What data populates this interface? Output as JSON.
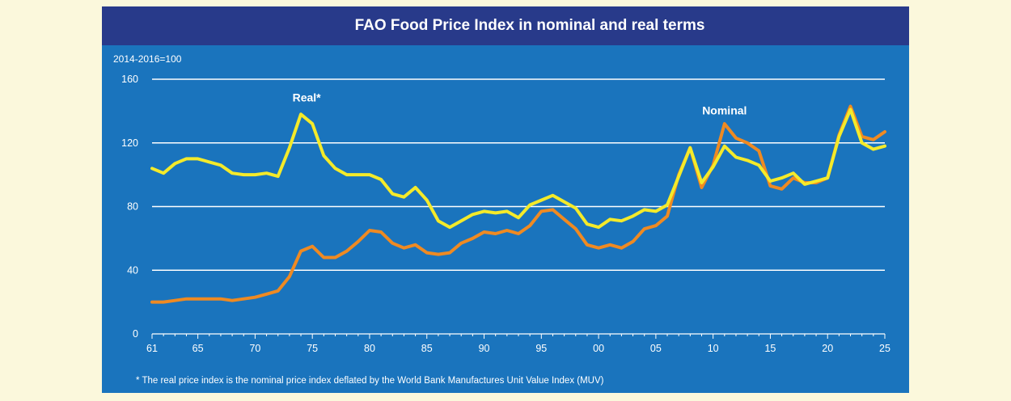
{
  "chart_data": {
    "type": "line",
    "title": "FAO Food Price Index in nominal and real terms",
    "ylabel": "2014-2016=100",
    "xlabel": "",
    "xlim": [
      1961,
      2025
    ],
    "ylim": [
      0,
      160
    ],
    "yticks": [
      0,
      40,
      80,
      120,
      160
    ],
    "xtick_labels": [
      "61",
      "65",
      "70",
      "75",
      "80",
      "85",
      "90",
      "95",
      "00",
      "05",
      "10",
      "15",
      "20",
      "25"
    ],
    "xtick_values": [
      1961,
      1965,
      1970,
      1975,
      1980,
      1985,
      1990,
      1995,
      2000,
      2005,
      2010,
      2015,
      2020,
      2025
    ],
    "grid": true,
    "annotations": [
      {
        "text": "Real*",
        "series": "Real",
        "x": 1974.5,
        "y": 146
      },
      {
        "text": "Nominal",
        "series": "Nominal",
        "x": 2011,
        "y": 138
      }
    ],
    "footnote": "* The real price index is the nominal price index deflated by the World Bank Manufactures Unit Value Index (MUV)",
    "colors": {
      "real": "#f4ea2a",
      "nominal": "#ef8a22",
      "grid": "#ffffff"
    },
    "series": [
      {
        "name": "Real",
        "x": [
          1961,
          1962,
          1963,
          1964,
          1965,
          1966,
          1967,
          1968,
          1969,
          1970,
          1971,
          1972,
          1973,
          1974,
          1975,
          1976,
          1977,
          1978,
          1979,
          1980,
          1981,
          1982,
          1983,
          1984,
          1985,
          1986,
          1987,
          1988,
          1989,
          1990,
          1991,
          1992,
          1993,
          1994,
          1995,
          1996,
          1997,
          1998,
          1999,
          2000,
          2001,
          2002,
          2003,
          2004,
          2005,
          2006,
          2007,
          2008,
          2009,
          2010,
          2011,
          2012,
          2013,
          2014,
          2015,
          2016,
          2017,
          2018,
          2019,
          2020,
          2021,
          2022,
          2023,
          2024,
          2025
        ],
        "values": [
          104,
          101,
          107,
          110,
          110,
          108,
          106,
          101,
          100,
          100,
          101,
          99,
          117,
          138,
          132,
          112,
          104,
          100,
          100,
          100,
          97,
          88,
          86,
          92,
          84,
          71,
          67,
          71,
          75,
          77,
          76,
          77,
          73,
          81,
          84,
          87,
          83,
          79,
          69,
          67,
          72,
          71,
          74,
          78,
          77,
          81,
          99,
          117,
          95,
          105,
          118,
          111,
          109,
          106,
          96,
          98,
          101,
          94,
          96,
          98,
          124,
          141,
          120,
          116,
          118
        ]
      },
      {
        "name": "Nominal",
        "x": [
          1961,
          1962,
          1963,
          1964,
          1965,
          1966,
          1967,
          1968,
          1969,
          1970,
          1971,
          1972,
          1973,
          1974,
          1975,
          1976,
          1977,
          1978,
          1979,
          1980,
          1981,
          1982,
          1983,
          1984,
          1985,
          1986,
          1987,
          1988,
          1989,
          1990,
          1991,
          1992,
          1993,
          1994,
          1995,
          1996,
          1997,
          1998,
          1999,
          2000,
          2001,
          2002,
          2003,
          2004,
          2005,
          2006,
          2007,
          2008,
          2009,
          2010,
          2011,
          2012,
          2013,
          2014,
          2015,
          2016,
          2017,
          2018,
          2019,
          2020,
          2021,
          2022,
          2023,
          2024,
          2025
        ],
        "values": [
          20,
          20,
          21,
          22,
          22,
          22,
          22,
          21,
          22,
          23,
          25,
          27,
          36,
          52,
          55,
          48,
          48,
          52,
          58,
          65,
          64,
          57,
          54,
          56,
          51,
          50,
          51,
          57,
          60,
          64,
          63,
          65,
          63,
          68,
          77,
          78,
          72,
          66,
          56,
          54,
          56,
          54,
          58,
          66,
          68,
          74,
          100,
          117,
          92,
          106,
          132,
          123,
          120,
          115,
          93,
          91,
          98,
          95,
          95,
          98,
          125,
          143,
          124,
          122,
          127
        ]
      }
    ]
  }
}
